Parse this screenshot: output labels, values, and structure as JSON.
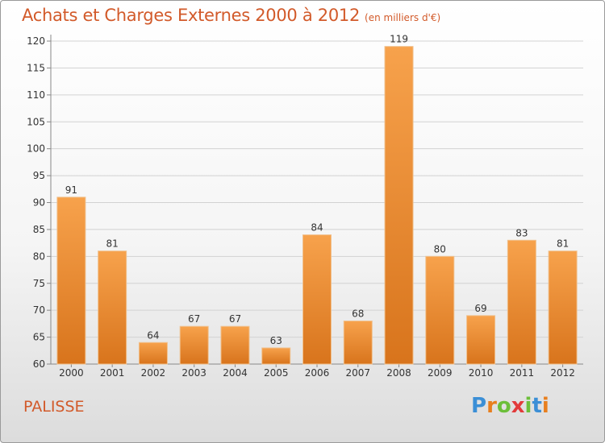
{
  "title": "Achats et Charges Externes 2000 à 2012",
  "subtitle": "(en milliers d'€)",
  "location": "PALISSE",
  "logo": {
    "letters": [
      "P",
      "r",
      "o",
      "x",
      "i",
      "t",
      "i"
    ],
    "colors": [
      "#3b8fd6",
      "#e87f1e",
      "#6cbf3a",
      "#e23b3b",
      "#6cbf3a",
      "#3b8fd6",
      "#e87f1e"
    ]
  },
  "colors": {
    "bar_light": "#f7a24c",
    "bar_dark": "#d8741c",
    "text": "#d25a2a"
  },
  "chart_data": {
    "type": "bar",
    "categories": [
      "2000",
      "2001",
      "2002",
      "2003",
      "2004",
      "2005",
      "2006",
      "2007",
      "2008",
      "2009",
      "2010",
      "2011",
      "2012"
    ],
    "values": [
      91,
      81,
      64,
      67,
      67,
      63,
      84,
      68,
      119,
      80,
      69,
      83,
      81
    ],
    "ylim": [
      60,
      120
    ],
    "yticks": [
      60,
      65,
      70,
      75,
      80,
      85,
      90,
      95,
      100,
      105,
      110,
      115,
      120
    ],
    "grid": "horizontal",
    "xlabel": "",
    "ylabel": ""
  }
}
